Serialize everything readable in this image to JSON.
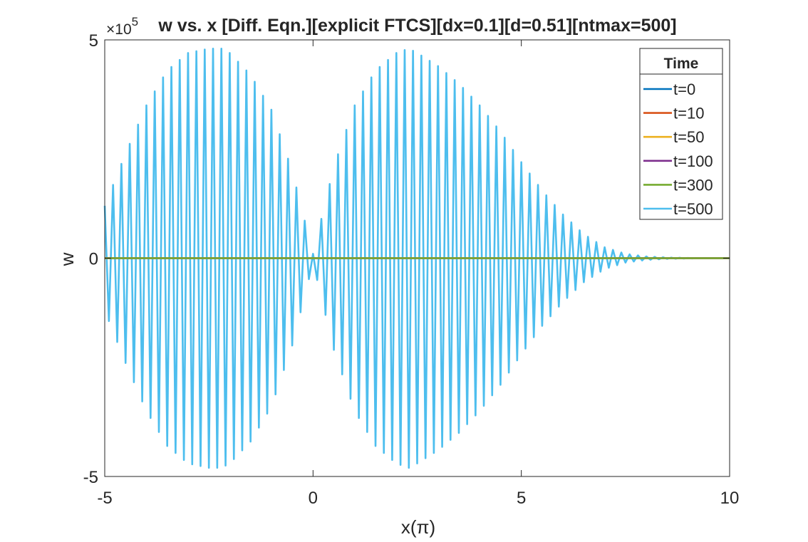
{
  "chart_data": {
    "type": "line",
    "title": "w vs. x [Diff. Eqn.][explicit FTCS][dx=0.1][d=0.51][ntmax=500]",
    "xlabel": "x(π)",
    "ylabel": "w",
    "y_exponent_label": "×10",
    "y_exponent_value": "5",
    "xlim": [
      -5,
      10
    ],
    "ylim": [
      -5,
      5
    ],
    "xticks": [
      "-5",
      "0",
      "5",
      "10"
    ],
    "yticks": [
      "-5",
      "0",
      "5"
    ],
    "grid": false,
    "legend": {
      "title": "Time",
      "placement": "top-right",
      "entries": [
        "t=0",
        "t=10",
        "t=50",
        "t=100",
        "t=300",
        "t=500"
      ]
    },
    "series": [
      {
        "name": "t=0",
        "color": "#0072BD",
        "form": "flat",
        "x_range": [
          -5,
          10
        ],
        "dx": 0.1,
        "value": 0
      },
      {
        "name": "t=10",
        "color": "#D95319",
        "form": "flat",
        "x_range": [
          -5,
          10
        ],
        "dx": 0.1,
        "value": 0
      },
      {
        "name": "t=50",
        "color": "#EDB120",
        "form": "flat",
        "x_range": [
          -5,
          10
        ],
        "dx": 0.1,
        "value": 0
      },
      {
        "name": "t=100",
        "color": "#7E2F8E",
        "form": "flat",
        "x_range": [
          -5,
          10
        ],
        "dx": 0.1,
        "value": 0
      },
      {
        "name": "t=300",
        "color": "#77AC30",
        "form": "flat",
        "x_range": [
          -5,
          10
        ],
        "dx": 0.1,
        "value": 0
      },
      {
        "name": "t=500",
        "color": "#4DBEEE",
        "form": "alternating",
        "x_range": [
          -5,
          10
        ],
        "dx": 0.1,
        "envelope": {
          "x": [
            -5.0,
            -4.5,
            -4.0,
            -3.5,
            -3.0,
            -2.5,
            -2.2,
            -2.0,
            -1.5,
            -1.0,
            -0.5,
            0.0,
            0.5,
            1.0,
            1.5,
            2.0,
            2.3,
            2.5,
            3.0,
            3.5,
            4.0,
            4.5,
            5.0,
            5.5,
            6.0,
            6.5,
            7.0,
            7.5,
            8.0,
            8.5,
            9.0,
            9.5,
            10.0
          ],
          "y": [
            1.2,
            2.4,
            3.5,
            4.3,
            4.7,
            4.8,
            4.8,
            4.7,
            4.2,
            3.4,
            2.0,
            0.1,
            2.1,
            3.5,
            4.3,
            4.7,
            4.8,
            4.7,
            4.4,
            4.0,
            3.5,
            2.9,
            2.2,
            1.55,
            1.0,
            0.55,
            0.25,
            0.1,
            0.04,
            0.015,
            0.005,
            0.002,
            0.0
          ]
        }
      }
    ]
  }
}
